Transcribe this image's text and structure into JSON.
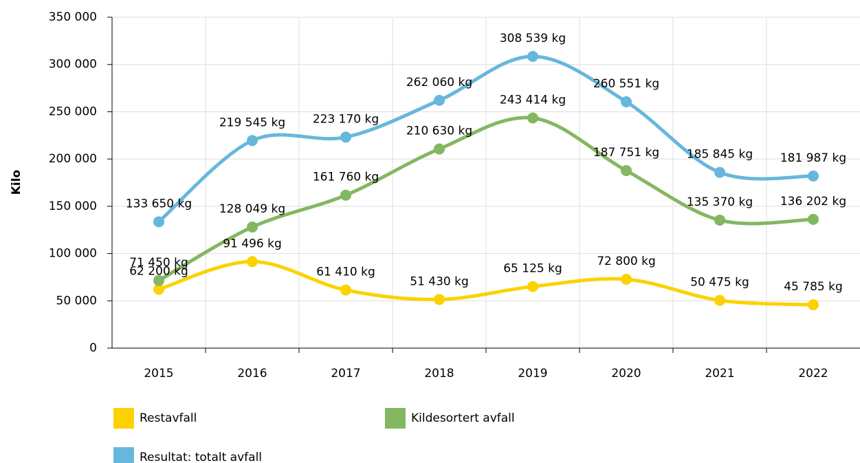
{
  "chart_data": {
    "type": "line",
    "y_label": "Kilo",
    "categories": [
      "2015",
      "2016",
      "2017",
      "2018",
      "2019",
      "2020",
      "2021",
      "2022"
    ],
    "series": [
      {
        "name": "Restavfall",
        "color": "#fcd202",
        "values": [
          62200,
          91496,
          61410,
          51430,
          65125,
          72800,
          50475,
          45785
        ],
        "value_labels": [
          "62 200 kg",
          "91 496 kg",
          "61 410 kg",
          "51 430 kg",
          "65 125 kg",
          "72 800 kg",
          "50 475 kg",
          "45 785 kg"
        ]
      },
      {
        "name": "Kildesortert avfall",
        "color": "#84b761",
        "values": [
          71450,
          128049,
          161760,
          210630,
          243414,
          187751,
          135370,
          136202
        ],
        "value_labels": [
          "71 450 kg",
          "128 049 kg",
          "161 760 kg",
          "210 630 kg",
          "243 414 kg",
          "187 751 kg",
          "135 370 kg",
          "136 202 kg"
        ]
      },
      {
        "name": "Resultat: totalt avfall",
        "color": "#67b7dc",
        "values": [
          133650,
          219545,
          223170,
          262060,
          308539,
          260551,
          185845,
          181987
        ],
        "value_labels": [
          "133 650 kg",
          "219 545 kg",
          "223 170 kg",
          "262 060 kg",
          "308 539 kg",
          "260 551 kg",
          "185 845 kg",
          "181 987 kg"
        ]
      }
    ],
    "ylim": [
      0,
      350000
    ],
    "yticks": [
      0,
      {
        "value": 50000,
        "label": "50 000"
      },
      {
        "value": 100000,
        "label": "100 000"
      },
      {
        "value": 150000,
        "label": "150 000"
      },
      {
        "value": 200000,
        "label": "200 000"
      },
      {
        "value": 250000,
        "label": "250 000"
      },
      {
        "value": 300000,
        "label": "300 000"
      },
      {
        "value": 350000,
        "label": "350 000"
      }
    ],
    "grid": true
  }
}
